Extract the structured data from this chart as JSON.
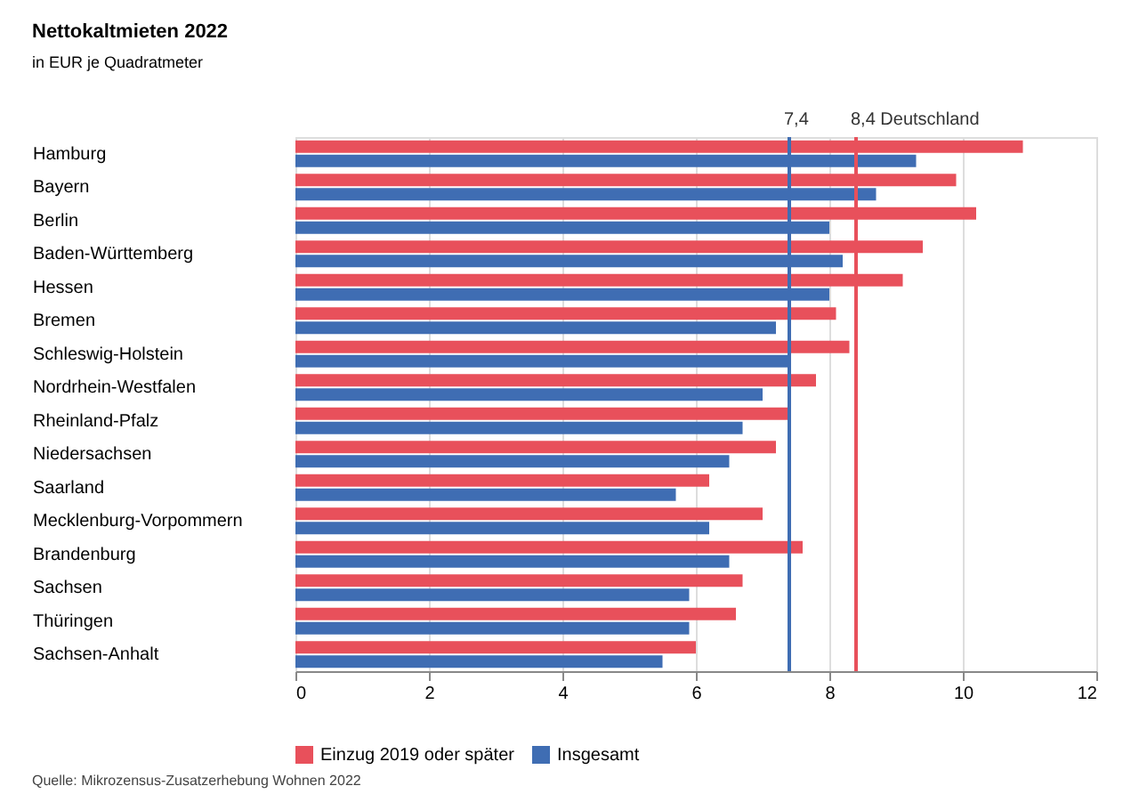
{
  "chart_data": {
    "type": "bar",
    "orientation": "horizontal",
    "title": "Nettokaltmieten 2022",
    "subtitle": "in EUR je Quadratmeter",
    "categories": [
      "Hamburg",
      "Bayern",
      "Berlin",
      "Baden-Württemberg",
      "Hessen",
      "Bremen",
      "Schleswig-Holstein",
      "Nordrhein-Westfalen",
      "Rheinland-Pfalz",
      "Niedersachsen",
      "Saarland",
      "Mecklenburg-Vorpommern",
      "Brandenburg",
      "Sachsen",
      "Thüringen",
      "Sachsen-Anhalt"
    ],
    "series": [
      {
        "name": "Einzug 2019 oder später",
        "color": "#e8505b",
        "values": [
          10.9,
          9.9,
          10.2,
          9.4,
          9.1,
          8.1,
          8.3,
          7.8,
          7.4,
          7.2,
          6.2,
          7.0,
          7.6,
          6.7,
          6.6,
          6.0
        ]
      },
      {
        "name": "Insgesamt",
        "color": "#3f6db3",
        "values": [
          9.3,
          8.7,
          8.0,
          8.2,
          8.0,
          7.2,
          7.4,
          7.0,
          6.7,
          6.5,
          5.7,
          6.2,
          6.5,
          5.9,
          5.9,
          5.5
        ]
      }
    ],
    "xlim": [
      0,
      12
    ],
    "xticks": [
      0,
      2,
      4,
      6,
      8,
      10,
      12
    ],
    "grid": "x",
    "legend": "bottom",
    "ref_lines": [
      {
        "axis": "x",
        "value": 7.4,
        "label": "7,4",
        "color": "#3f6db3"
      },
      {
        "axis": "x",
        "value": 8.4,
        "label": "8,4 Deutschland",
        "color": "#e8505b"
      }
    ],
    "annotations": [
      "Quelle: Mikrozensus-Zusatzerhebung Wohnen 2022"
    ]
  }
}
